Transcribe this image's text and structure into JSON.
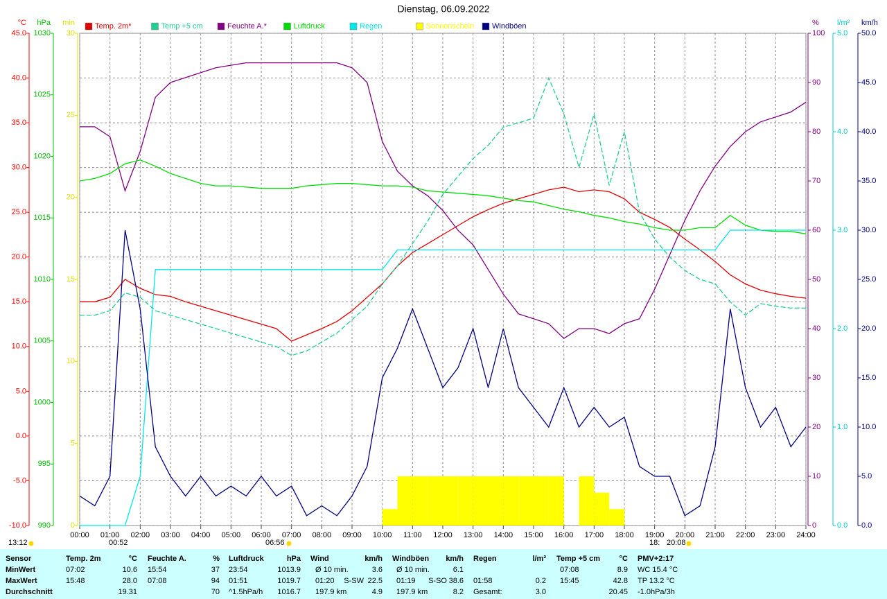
{
  "chart_data": {
    "type": "line",
    "title": "Dienstag, 06.09.2022",
    "xlim": [
      0,
      24
    ],
    "xticks": [
      {
        "value": 0,
        "label": "00:00"
      },
      {
        "value": 1,
        "label": "01:00"
      },
      {
        "value": 2,
        "label": "02:00"
      },
      {
        "value": 3,
        "label": "03:00"
      },
      {
        "value": 4,
        "label": "04:00"
      },
      {
        "value": 5,
        "label": "05:00"
      },
      {
        "value": 6,
        "label": "06:00"
      },
      {
        "value": 7,
        "label": "07:00"
      },
      {
        "value": 8,
        "label": "08:00"
      },
      {
        "value": 9,
        "label": "09:00"
      },
      {
        "value": 10,
        "label": "10:00"
      },
      {
        "value": 11,
        "label": "11:00"
      },
      {
        "value": 12,
        "label": "12:00"
      },
      {
        "value": 13,
        "label": "13:00"
      },
      {
        "value": 14,
        "label": "14:00"
      },
      {
        "value": 15,
        "label": "15:00"
      },
      {
        "value": 16,
        "label": "16:00"
      },
      {
        "value": 17,
        "label": "17:00"
      },
      {
        "value": 18,
        "label": "18:00"
      },
      {
        "value": 19,
        "label": "19:00"
      },
      {
        "value": 20,
        "label": "20:00"
      },
      {
        "value": 21,
        "label": "21:00"
      },
      {
        "value": 22,
        "label": "22:00"
      },
      {
        "value": 23,
        "label": "23:00"
      },
      {
        "value": 24,
        "label": "24:00"
      }
    ],
    "axes": {
      "y": {
        "unit": "°C",
        "color": "#ff0000",
        "side": "left",
        "lim": [
          -10,
          45
        ],
        "ticks": [
          {
            "value": 45,
            "label": "45.0"
          },
          {
            "value": 40,
            "label": "40.0"
          },
          {
            "value": 35,
            "label": "35.0"
          },
          {
            "value": 30,
            "label": "30.0"
          },
          {
            "value": 25,
            "label": "25.0"
          },
          {
            "value": 20,
            "label": "20.0"
          },
          {
            "value": 15,
            "label": "15.0"
          },
          {
            "value": 10,
            "label": "10.0"
          },
          {
            "value": 5,
            "label": "5.0"
          },
          {
            "value": 0,
            "label": "0.0"
          },
          {
            "value": -5,
            "label": "-5.0"
          },
          {
            "value": -10,
            "label": "-10.0"
          }
        ]
      },
      "y2": {
        "unit": "hPa",
        "color": "#00c000",
        "side": "left",
        "lim": [
          990,
          1030
        ],
        "ticks": [
          1030,
          1025,
          1020,
          1015,
          1010,
          1005,
          1000,
          995,
          990
        ]
      },
      "y3": {
        "unit": "min",
        "color": "#e0e000",
        "side": "left",
        "lim": [
          0,
          30
        ],
        "ticks": [
          30,
          25,
          20,
          15,
          10,
          5,
          0
        ]
      },
      "y4": {
        "unit": "%",
        "color": "#800080",
        "side": "right",
        "lim": [
          0,
          100
        ],
        "ticks": [
          100,
          90,
          80,
          70,
          60,
          50,
          40,
          30,
          20,
          10,
          0
        ]
      },
      "y5": {
        "unit": "l/m²",
        "color": "#00cccc",
        "side": "right",
        "lim": [
          0,
          5
        ],
        "ticks": [
          {
            "value": 5,
            "label": "5.0"
          },
          {
            "value": 4,
            "label": "4.0"
          },
          {
            "value": 3,
            "label": "3.0"
          },
          {
            "value": 2,
            "label": "2.0"
          },
          {
            "value": 1,
            "label": "1.0"
          },
          {
            "value": 0,
            "label": "0.0"
          }
        ]
      },
      "y6": {
        "unit": "km/h",
        "color": "#000080",
        "side": "right",
        "lim": [
          0,
          50
        ],
        "ticks": [
          {
            "value": 50,
            "label": "50.0"
          },
          {
            "value": 45,
            "label": "45.0"
          },
          {
            "value": 40,
            "label": "40.0"
          },
          {
            "value": 35,
            "label": "35.0"
          },
          {
            "value": 30,
            "label": "30.0"
          },
          {
            "value": 25,
            "label": "25.0"
          },
          {
            "value": 20,
            "label": "20.0"
          },
          {
            "value": 15,
            "label": "15.0"
          },
          {
            "value": 10,
            "label": "10.0"
          },
          {
            "value": 5,
            "label": "5.0"
          },
          {
            "value": 0,
            "label": "0.0"
          }
        ]
      }
    },
    "grid": true,
    "grid_axis": "y",
    "legend": "top",
    "x": [
      0,
      0.5,
      1,
      1.5,
      2,
      2.5,
      3,
      3.5,
      4,
      4.5,
      5,
      5.5,
      6,
      6.5,
      7,
      7.5,
      8,
      8.5,
      9,
      9.5,
      10,
      10.5,
      11,
      11.5,
      12,
      12.5,
      13,
      13.5,
      14,
      14.5,
      15,
      15.5,
      16,
      16.5,
      17,
      17.5,
      18,
      18.5,
      19,
      19.5,
      20,
      20.5,
      21,
      21.5,
      22,
      22.5,
      23,
      23.5,
      24
    ],
    "series": [
      {
        "name": "Temp. 2m*",
        "color": "#e00000",
        "axis": "y",
        "kind": "line",
        "values": [
          15.0,
          15.0,
          15.5,
          17.5,
          16.5,
          15.8,
          15.6,
          15.0,
          14.5,
          14.0,
          13.5,
          13.0,
          12.5,
          12.0,
          10.6,
          11.3,
          12.0,
          12.8,
          14.0,
          15.5,
          17.0,
          19.0,
          20.5,
          21.5,
          22.5,
          23.5,
          24.5,
          25.3,
          26.0,
          26.5,
          27.0,
          27.5,
          27.8,
          27.3,
          27.5,
          27.3,
          26.5,
          25.0,
          24.2,
          23.3,
          22.0,
          20.8,
          19.5,
          18.0,
          17.0,
          16.3,
          15.9,
          15.6,
          15.4
        ]
      },
      {
        "name": "Temp +5 cm",
        "color": "#20d090",
        "axis": "y",
        "kind": "line",
        "dash": true,
        "values": [
          13.5,
          13.5,
          14.0,
          16.0,
          15.5,
          14.0,
          13.5,
          13.0,
          12.5,
          12.0,
          11.5,
          11.0,
          10.5,
          10.0,
          9.0,
          9.5,
          10.5,
          11.5,
          13.0,
          14.5,
          17.0,
          19.0,
          21.5,
          24.0,
          27.0,
          29.0,
          31.0,
          32.5,
          34.5,
          35.0,
          35.5,
          40.0,
          36.0,
          30.0,
          36.0,
          28.0,
          34.0,
          25.0,
          22.0,
          20.0,
          18.5,
          17.5,
          17.0,
          15.0,
          13.5,
          14.8,
          14.5,
          14.3,
          14.3
        ]
      },
      {
        "name": "Feuchte A.*",
        "color": "#800080",
        "axis": "y4",
        "kind": "line",
        "values": [
          81,
          81,
          79,
          68,
          76,
          87,
          90,
          91,
          92,
          93,
          93.5,
          94,
          94,
          94,
          94,
          94,
          94,
          94,
          93,
          90,
          78,
          72,
          69,
          67,
          64,
          60,
          57,
          52,
          47,
          43,
          42,
          41,
          38,
          40,
          40,
          39,
          41,
          42,
          48,
          55,
          62,
          68,
          73,
          77,
          80,
          82,
          83,
          84,
          86
        ]
      },
      {
        "name": "Luftdruck",
        "color": "#00dd00",
        "axis": "y2",
        "kind": "line",
        "values": [
          1018.0,
          1018.2,
          1018.6,
          1019.4,
          1019.7,
          1019.2,
          1018.6,
          1018.2,
          1017.8,
          1017.6,
          1017.6,
          1017.5,
          1017.4,
          1017.4,
          1017.4,
          1017.6,
          1017.7,
          1017.8,
          1017.8,
          1017.7,
          1017.6,
          1017.6,
          1017.5,
          1017.2,
          1017.1,
          1017.0,
          1016.9,
          1016.8,
          1016.6,
          1016.4,
          1016.3,
          1016.0,
          1015.7,
          1015.5,
          1015.2,
          1015.0,
          1014.7,
          1014.5,
          1014.2,
          1014.0,
          1014.0,
          1014.2,
          1014.2,
          1015.2,
          1014.4,
          1014.0,
          1013.9,
          1013.9,
          1013.7
        ]
      },
      {
        "name": "Regen",
        "color": "#00e8e8",
        "axis": "y5",
        "kind": "line",
        "values": [
          0,
          0,
          0,
          0,
          0.5,
          2.6,
          2.6,
          2.6,
          2.6,
          2.6,
          2.6,
          2.6,
          2.6,
          2.6,
          2.6,
          2.6,
          2.6,
          2.6,
          2.6,
          2.6,
          2.6,
          2.8,
          2.8,
          2.8,
          2.8,
          2.8,
          2.8,
          2.8,
          2.8,
          2.8,
          2.8,
          2.8,
          2.8,
          2.8,
          2.8,
          2.8,
          2.8,
          2.8,
          2.8,
          2.8,
          2.8,
          2.8,
          2.8,
          3.0,
          3.0,
          3.0,
          3.0,
          3.0,
          3.0
        ]
      },
      {
        "name": "Sonnenschein",
        "color": "#ffff00",
        "axis": "y3",
        "kind": "bar",
        "values": [
          0,
          0,
          0,
          0,
          0,
          0,
          0,
          0,
          0,
          0,
          0,
          0,
          0,
          0,
          0,
          0,
          0,
          0,
          0,
          0,
          1,
          3,
          3,
          3,
          3,
          3,
          3,
          3,
          3,
          3,
          3,
          3,
          0,
          3,
          2,
          1,
          0,
          0,
          0,
          0,
          0,
          0,
          0,
          0,
          0,
          0,
          0,
          0,
          0
        ]
      },
      {
        "name": "Windböen",
        "color": "#000080",
        "axis": "y6",
        "kind": "line",
        "values": [
          3,
          2,
          5,
          30,
          22,
          8,
          5,
          3,
          5,
          3,
          4,
          3,
          5,
          3,
          4,
          1,
          2,
          1,
          3,
          6,
          15,
          18,
          22,
          18,
          14,
          16,
          20,
          14,
          20,
          14,
          12,
          10,
          14,
          10,
          12,
          10,
          11,
          6,
          5,
          5,
          1,
          2,
          8,
          22,
          14,
          10,
          12,
          8,
          10
        ]
      }
    ],
    "annotations": [
      "13:12",
      "00:52",
      "06:56",
      "18:",
      "20:08"
    ]
  },
  "table": {
    "header": [
      "Sensor",
      "Temp. 2m",
      "°C",
      "Feuchte A.",
      "%",
      "Luftdruck",
      "hPa",
      "Wind",
      "km/h",
      "Windböen",
      "km/h",
      "Regen",
      "l/m²",
      "Temp +5 cm",
      "°C",
      "PMV+2:17"
    ],
    "rows": [
      {
        "label": "MinWert",
        "cells": [
          "07:02",
          "10.6",
          "15:54",
          "37",
          "23:54",
          "1013.9",
          "Ø 10 min.",
          null,
          "3.6",
          "Ø 10 min.",
          null,
          "6.1",
          null,
          null,
          "07:08",
          "8.9",
          "WC 15.4 °C"
        ]
      },
      {
        "label": "MaxWert",
        "cells": [
          "15:48",
          "28.0",
          "07:08",
          "94",
          "01:51",
          "1019.7",
          "01:20",
          "S-SW",
          "22.5",
          "01:19",
          "S-SO",
          "38.6",
          "01:58",
          "0.2",
          "15:45",
          "42.8",
          "TP 13.2 °C"
        ]
      },
      {
        "label": "Durchschnitt",
        "cells": [
          null,
          "19.31",
          null,
          "70",
          "^1.5hPa/h",
          "1016.7",
          "197.9 km",
          null,
          "4.9",
          "197.9 km",
          null,
          "8.2",
          "Gesamt:",
          "3.0",
          null,
          "20.45",
          "-1.0hPa/3h"
        ]
      }
    ]
  }
}
